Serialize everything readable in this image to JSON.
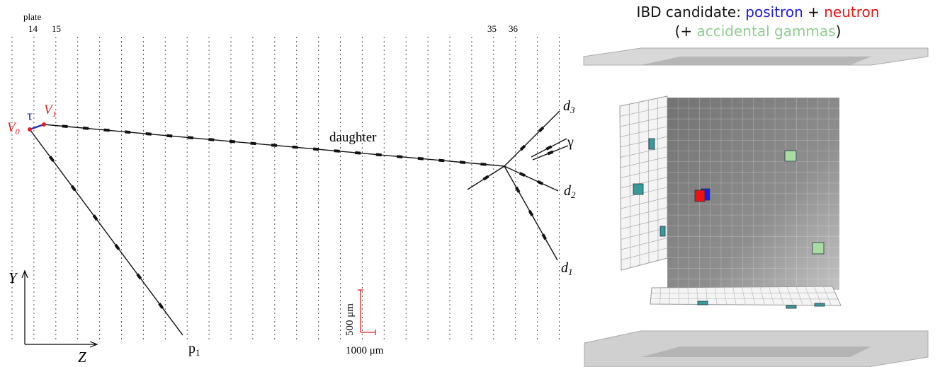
{
  "left": {
    "plate_label": "plate",
    "plates": [
      "14",
      "15",
      "35",
      "36"
    ],
    "vertices": {
      "v0": "V",
      "v0_sub": "0",
      "tau": "τ",
      "v1": "V",
      "v1_sub": "1"
    },
    "tracks": {
      "daughter": "daughter",
      "d3": "d",
      "d3_sub": "3",
      "gamma": "γ",
      "d2": "d",
      "d2_sub": "2",
      "d1": "d",
      "d1_sub": "1",
      "p1": "p",
      "p1_sub": "1"
    },
    "axes": {
      "y": "Y",
      "z": "Z"
    },
    "scale": {
      "vertical": "500 μm",
      "horizontal": "1000 μm"
    }
  },
  "right": {
    "title": {
      "prefix": "IBD candidate: ",
      "positron": "positron",
      "plus": " + ",
      "neutron": "neutron",
      "line2_open": "(+ ",
      "gammas": "accidental gammas",
      "line2_close": ")"
    }
  }
}
